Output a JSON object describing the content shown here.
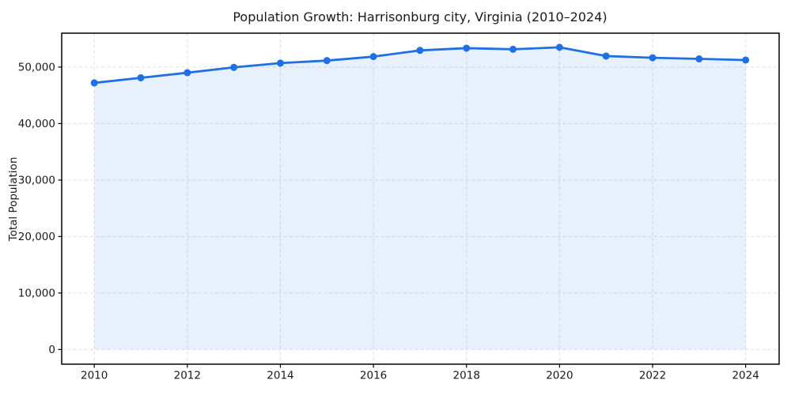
{
  "chart_data": {
    "type": "line",
    "title": "Population Growth: Harrisonburg city, Virginia (2010–2024)",
    "xlabel": "",
    "ylabel": "Total Population",
    "x": [
      2010,
      2011,
      2012,
      2013,
      2014,
      2015,
      2016,
      2017,
      2018,
      2019,
      2020,
      2021,
      2022,
      2023,
      2024
    ],
    "series": [
      {
        "name": "Total Population",
        "values": [
          47200,
          48100,
          49000,
          49950,
          50700,
          51150,
          51850,
          52950,
          53350,
          53150,
          53500,
          51950,
          51650,
          51450,
          51250
        ],
        "color": "#1f6fe6",
        "marker": "circle",
        "marker_radius": 4.5,
        "line_width": 2.8,
        "fill_below": true,
        "fill_opacity": 0.1
      }
    ],
    "x_ticks": [
      2010,
      2012,
      2014,
      2016,
      2018,
      2020,
      2022,
      2024
    ],
    "x_tick_labels": [
      "2010",
      "2012",
      "2014",
      "2016",
      "2018",
      "2020",
      "2022",
      "2024"
    ],
    "y_ticks": [
      0,
      10000,
      20000,
      30000,
      40000,
      50000
    ],
    "y_tick_labels": [
      "0",
      "10,000",
      "20,000",
      "30,000",
      "40,000",
      "50,000"
    ],
    "xlim": [
      2009.3,
      2024.72
    ],
    "ylim": [
      -2600,
      56000
    ],
    "grid": true,
    "grid_style": "dashed",
    "grid_color": "#dfdfdf",
    "axis_color": "#000000",
    "text_color": "#1a1a1a",
    "background": "#ffffff",
    "legend_position": "none"
  }
}
